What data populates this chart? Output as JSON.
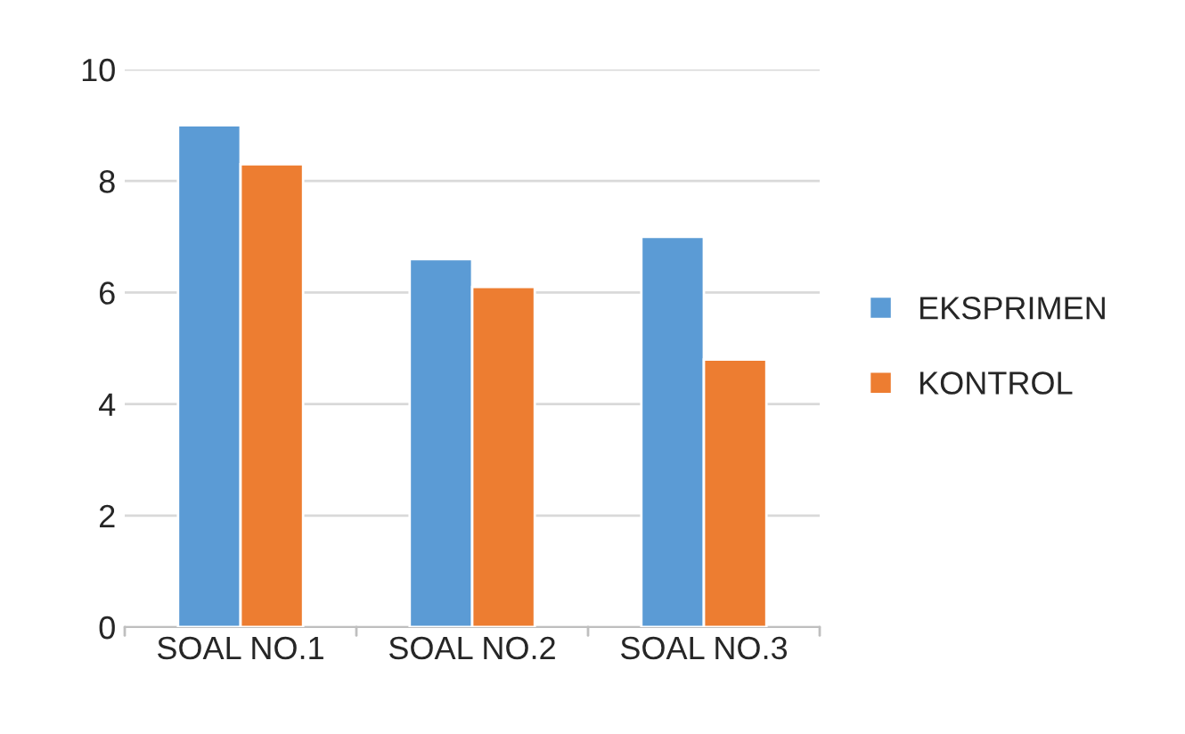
{
  "chart_data": {
    "type": "bar",
    "categories": [
      "SOAL NO.1",
      "SOAL NO.2",
      "SOAL NO.3"
    ],
    "series": [
      {
        "name": "EKSPRIMEN",
        "color": "#5b9bd5",
        "values": [
          9.0,
          6.6,
          7.0
        ]
      },
      {
        "name": "KONTROL",
        "color": "#ed7d31",
        "values": [
          8.3,
          6.1,
          4.8
        ]
      }
    ],
    "ylim": [
      0,
      10
    ],
    "yticks": [
      0,
      2,
      4,
      6,
      8,
      10
    ],
    "grid": "y",
    "legend": "right"
  }
}
